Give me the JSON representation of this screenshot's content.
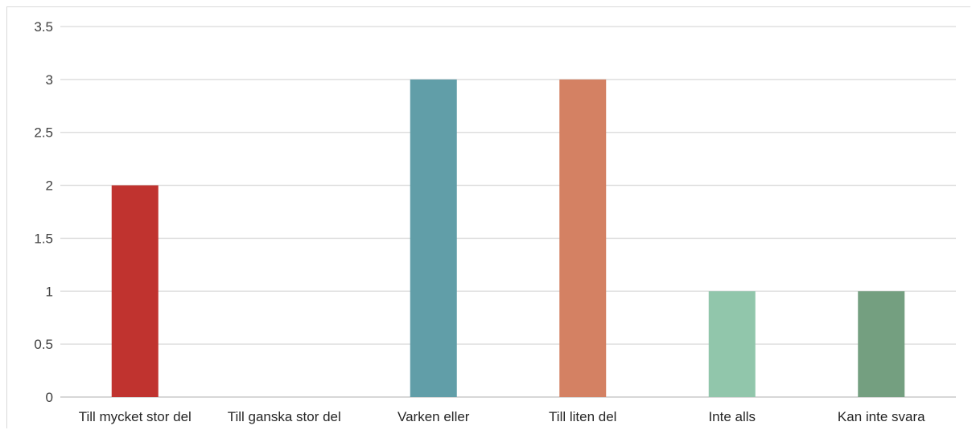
{
  "chart_data": {
    "type": "bar",
    "categories": [
      "Till mycket stor del",
      "Till ganska stor del",
      "Varken eller",
      "Till liten del",
      "Inte alls",
      "Kan inte svara"
    ],
    "values": [
      2,
      0,
      3,
      3,
      1,
      1
    ],
    "bar_colors": [
      "#c0332f",
      "#c0332f",
      "#619ea8",
      "#d48163",
      "#91c6ab",
      "#749f80"
    ],
    "y_ticks": [
      "0",
      "0.5",
      "1",
      "1.5",
      "2",
      "2.5",
      "3",
      "3.5"
    ],
    "ylim": [
      0,
      3.5
    ],
    "grid": true,
    "title": "",
    "xlabel": "",
    "ylabel": ""
  }
}
